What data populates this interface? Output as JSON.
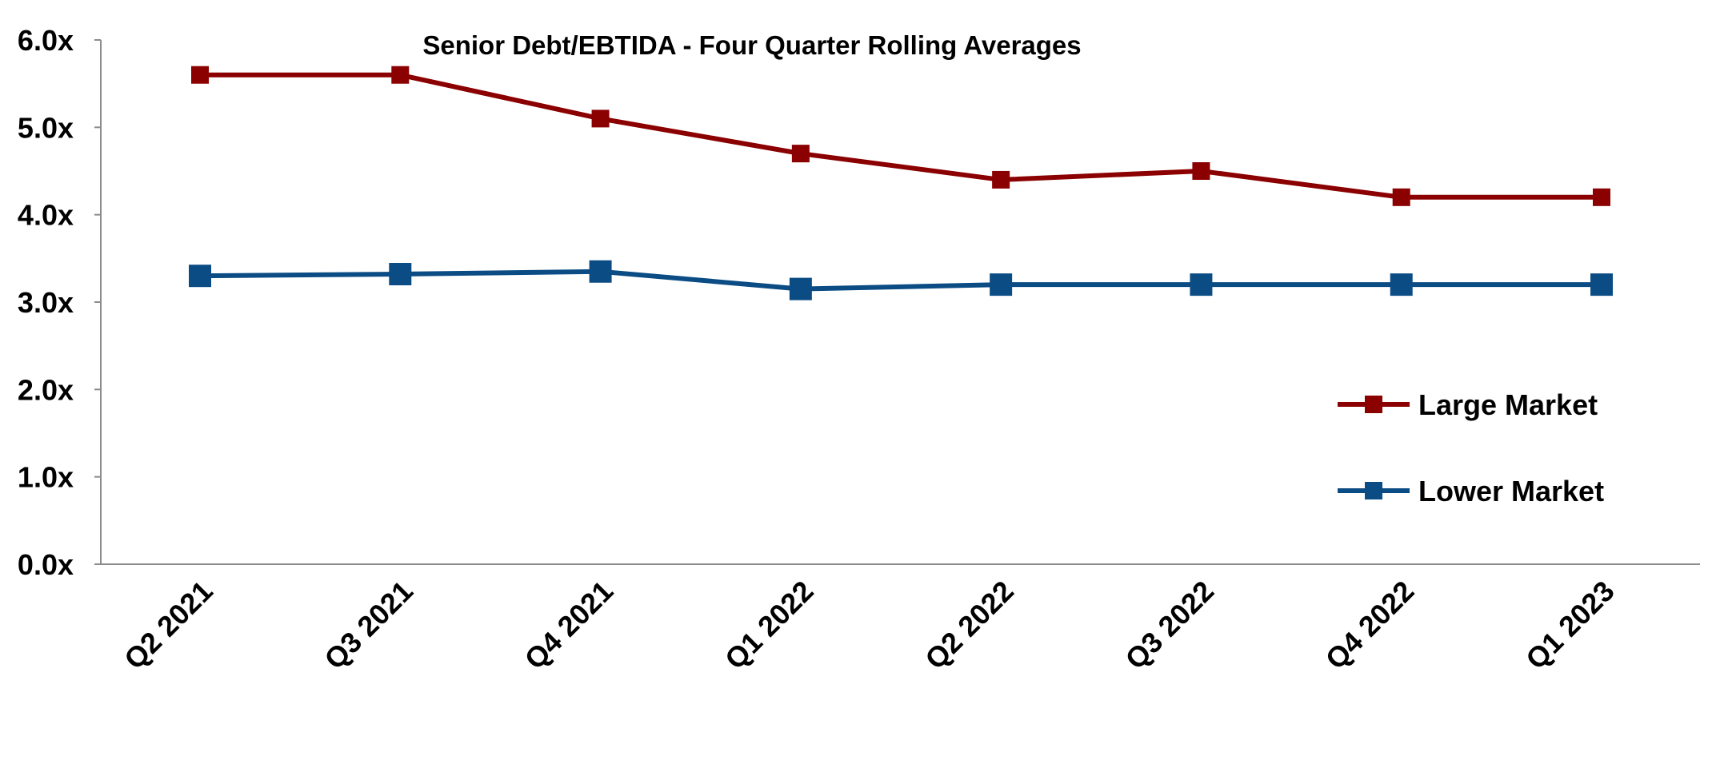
{
  "chart_data": {
    "type": "line",
    "title": "Senior Debt/EBTIDA - Four Quarter Rolling Averages",
    "xlabel": "",
    "ylabel": "",
    "categories": [
      "Q2 2021",
      "Q3 2021",
      "Q4 2021",
      "Q1 2022",
      "Q2 2022",
      "Q3 2022",
      "Q4 2022",
      "Q1 2023"
    ],
    "ylim": [
      0,
      6
    ],
    "yticks": [
      "0.0x",
      "1.0x",
      "2.0x",
      "3.0x",
      "4.0x",
      "5.0x",
      "6.0x"
    ],
    "grid": false,
    "legend_position": "right",
    "series": [
      {
        "name": "Large Market",
        "color": "#8B0000",
        "marker": "square",
        "values": [
          5.6,
          5.6,
          5.1,
          4.7,
          4.4,
          4.5,
          4.2,
          4.2
        ]
      },
      {
        "name": "Lower Market",
        "color": "#0B4C84",
        "marker": "square",
        "values": [
          3.3,
          3.32,
          3.35,
          3.15,
          3.2,
          3.2,
          3.2,
          3.2
        ]
      }
    ]
  }
}
